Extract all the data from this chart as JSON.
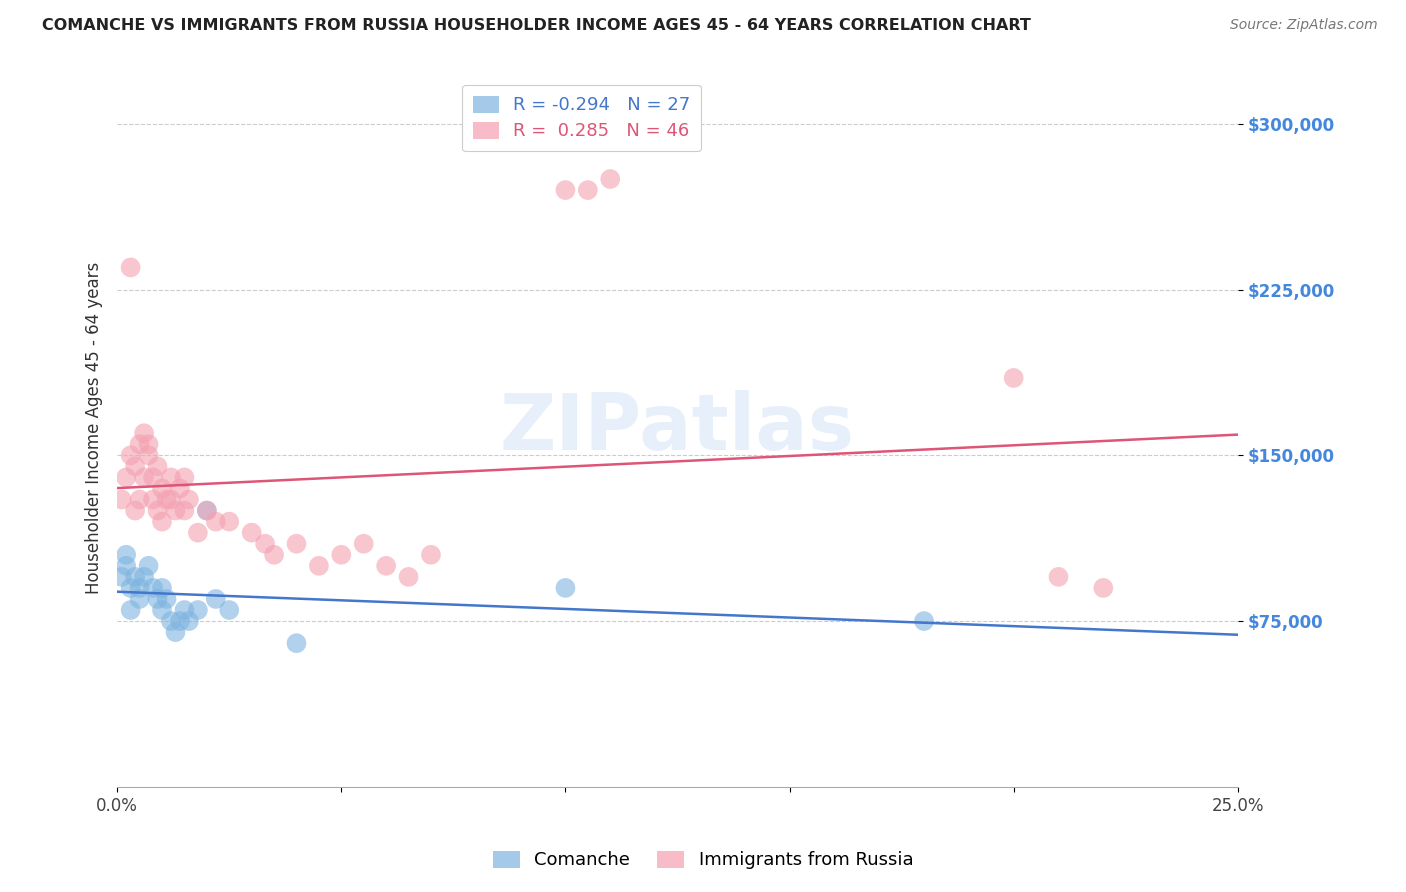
{
  "title": "COMANCHE VS IMMIGRANTS FROM RUSSIA HOUSEHOLDER INCOME AGES 45 - 64 YEARS CORRELATION CHART",
  "source": "Source: ZipAtlas.com",
  "ylabel": "Householder Income Ages 45 - 64 years",
  "ytick_values": [
    75000,
    150000,
    225000,
    300000
  ],
  "ylim": [
    0,
    325000
  ],
  "xlim": [
    0.0,
    0.25
  ],
  "legend_blue_R": "-0.294",
  "legend_blue_N": "27",
  "legend_pink_R": "0.285",
  "legend_pink_N": "46",
  "label_comanche": "Comanche",
  "label_russia": "Immigrants from Russia",
  "blue_color": "#7eb3e0",
  "pink_color": "#f4a0b0",
  "blue_line_color": "#4477cc",
  "pink_line_color": "#dd5577",
  "blue_tick_color": "#4488dd",
  "watermark_text": "ZIPatlas",
  "blue_scatter_x": [
    0.001,
    0.002,
    0.002,
    0.003,
    0.003,
    0.004,
    0.005,
    0.005,
    0.006,
    0.007,
    0.008,
    0.009,
    0.01,
    0.01,
    0.011,
    0.012,
    0.013,
    0.014,
    0.015,
    0.016,
    0.018,
    0.02,
    0.022,
    0.025,
    0.04,
    0.1,
    0.18
  ],
  "blue_scatter_y": [
    95000,
    100000,
    105000,
    90000,
    80000,
    95000,
    85000,
    90000,
    95000,
    100000,
    90000,
    85000,
    80000,
    90000,
    85000,
    75000,
    70000,
    75000,
    80000,
    75000,
    80000,
    125000,
    85000,
    80000,
    65000,
    90000,
    75000
  ],
  "pink_scatter_x": [
    0.001,
    0.002,
    0.003,
    0.003,
    0.004,
    0.004,
    0.005,
    0.005,
    0.006,
    0.006,
    0.007,
    0.007,
    0.008,
    0.008,
    0.009,
    0.009,
    0.01,
    0.01,
    0.011,
    0.012,
    0.012,
    0.013,
    0.014,
    0.015,
    0.015,
    0.016,
    0.018,
    0.02,
    0.022,
    0.025,
    0.03,
    0.033,
    0.035,
    0.04,
    0.045,
    0.05,
    0.055,
    0.06,
    0.065,
    0.07,
    0.1,
    0.105,
    0.11,
    0.2,
    0.21,
    0.22
  ],
  "pink_scatter_y": [
    130000,
    140000,
    235000,
    150000,
    125000,
    145000,
    155000,
    130000,
    160000,
    140000,
    150000,
    155000,
    140000,
    130000,
    145000,
    125000,
    135000,
    120000,
    130000,
    140000,
    130000,
    125000,
    135000,
    140000,
    125000,
    130000,
    115000,
    125000,
    120000,
    120000,
    115000,
    110000,
    105000,
    110000,
    100000,
    105000,
    110000,
    100000,
    95000,
    105000,
    270000,
    270000,
    275000,
    185000,
    95000,
    90000
  ]
}
